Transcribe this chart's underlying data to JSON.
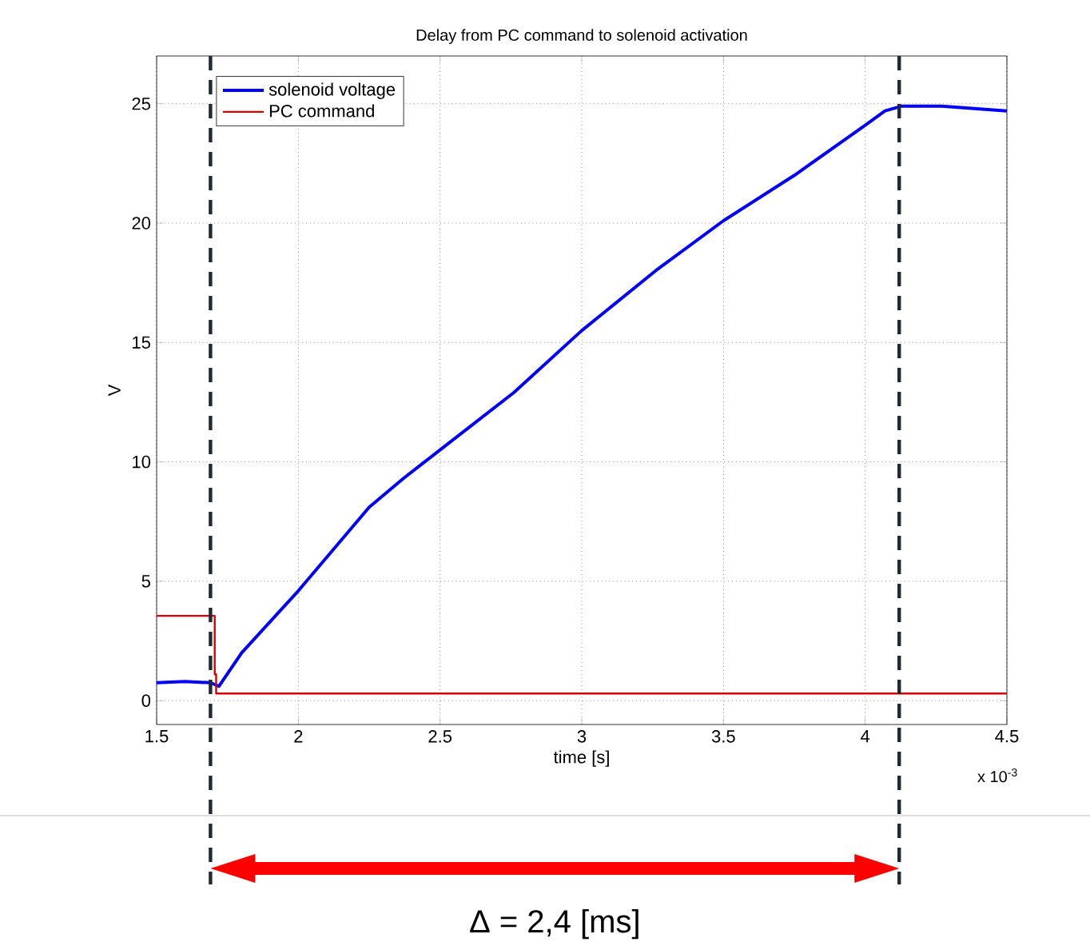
{
  "chart_data": {
    "type": "line",
    "title": "Delay from PC command to solenoid activation",
    "xlabel": "time [s]",
    "ylabel": "V",
    "xlim": [
      1.5,
      4.5
    ],
    "ylim": [
      -1,
      27
    ],
    "xticks": [
      1.5,
      2,
      2.5,
      3,
      3.5,
      4,
      4.5
    ],
    "yticks": [
      0,
      5,
      10,
      15,
      20,
      25
    ],
    "grid": true,
    "legend": "top left",
    "line_style": "solid",
    "marker": "none",
    "series": [
      {
        "name": "solenoid voltage",
        "color": "#0000ff",
        "x": [
          1.5,
          1.6,
          1.69,
          1.72,
          1.8,
          2.0,
          2.25,
          2.37,
          2.5,
          2.76,
          3.0,
          3.26,
          3.5,
          3.75,
          4.0,
          4.07,
          4.13,
          4.27,
          4.5
        ],
        "values": [
          0.75,
          0.8,
          0.75,
          0.6,
          2.0,
          4.6,
          8.1,
          9.3,
          10.5,
          12.9,
          15.5,
          18.0,
          20.1,
          22.0,
          24.1,
          24.7,
          24.9,
          24.9,
          24.7
        ]
      },
      {
        "name": "PC command",
        "color": "#dd0000",
        "x": [
          1.5,
          1.705,
          1.705,
          1.71,
          1.71,
          4.5
        ],
        "values": [
          3.55,
          3.55,
          1.1,
          1.1,
          0.3,
          0.3
        ]
      }
    ],
    "ref_lines": [
      {
        "axis": "x",
        "value": 1.69,
        "color": "#1f2a36",
        "line_style": "dashed"
      },
      {
        "axis": "x",
        "value": 4.12,
        "color": "#1f2a36",
        "line_style": "dashed"
      }
    ],
    "annotations": [
      "x 10$^{-3}$",
      "Δ = 2,4 [ms]"
    ]
  }
}
